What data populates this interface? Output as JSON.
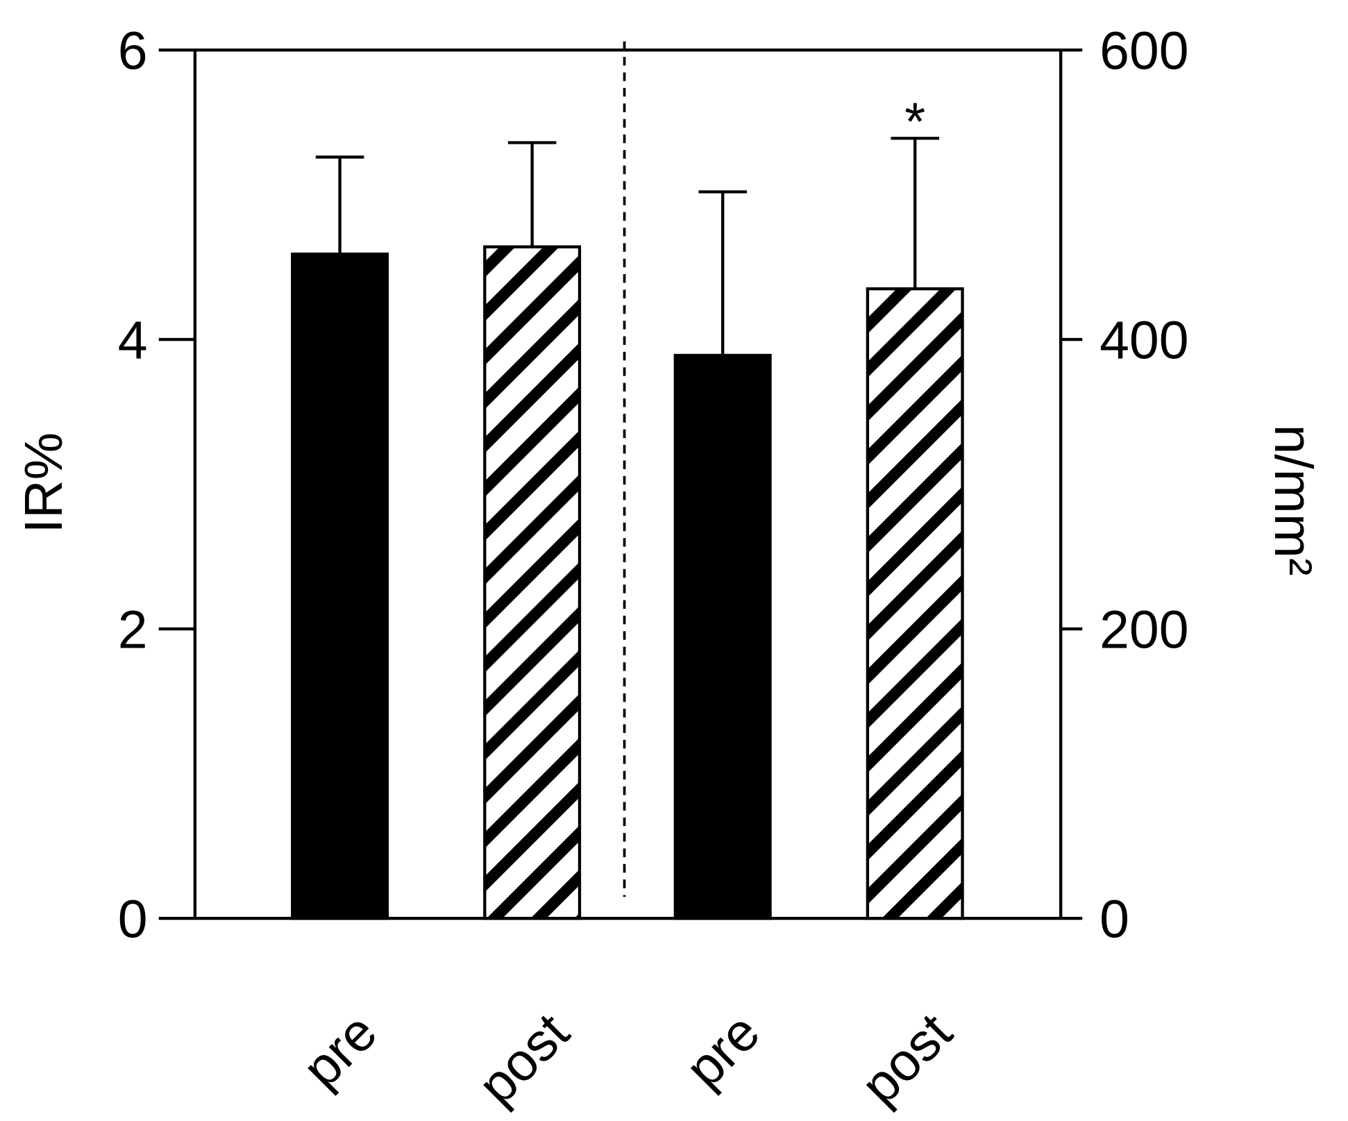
{
  "chart_data": {
    "type": "bar",
    "ylabel": "IR%",
    "y2label": "n/mm²",
    "categories": [
      "pre",
      "post",
      "pre",
      "post"
    ],
    "values": [
      4.59,
      4.64,
      389,
      435
    ],
    "errors": [
      0.67,
      0.72,
      113,
      104
    ],
    "axes": [
      "y",
      "y",
      "y2",
      "y2"
    ],
    "fills": [
      "solid",
      "hatched",
      "solid",
      "hatched"
    ],
    "color": "#000000",
    "ylim": [
      0,
      6
    ],
    "yticks": [
      0,
      2,
      4,
      6
    ],
    "y2lim": [
      0,
      600
    ],
    "y2ticks": [
      0,
      200,
      400,
      600
    ],
    "annotations": [
      {
        "text": "*",
        "index": 3
      }
    ]
  }
}
